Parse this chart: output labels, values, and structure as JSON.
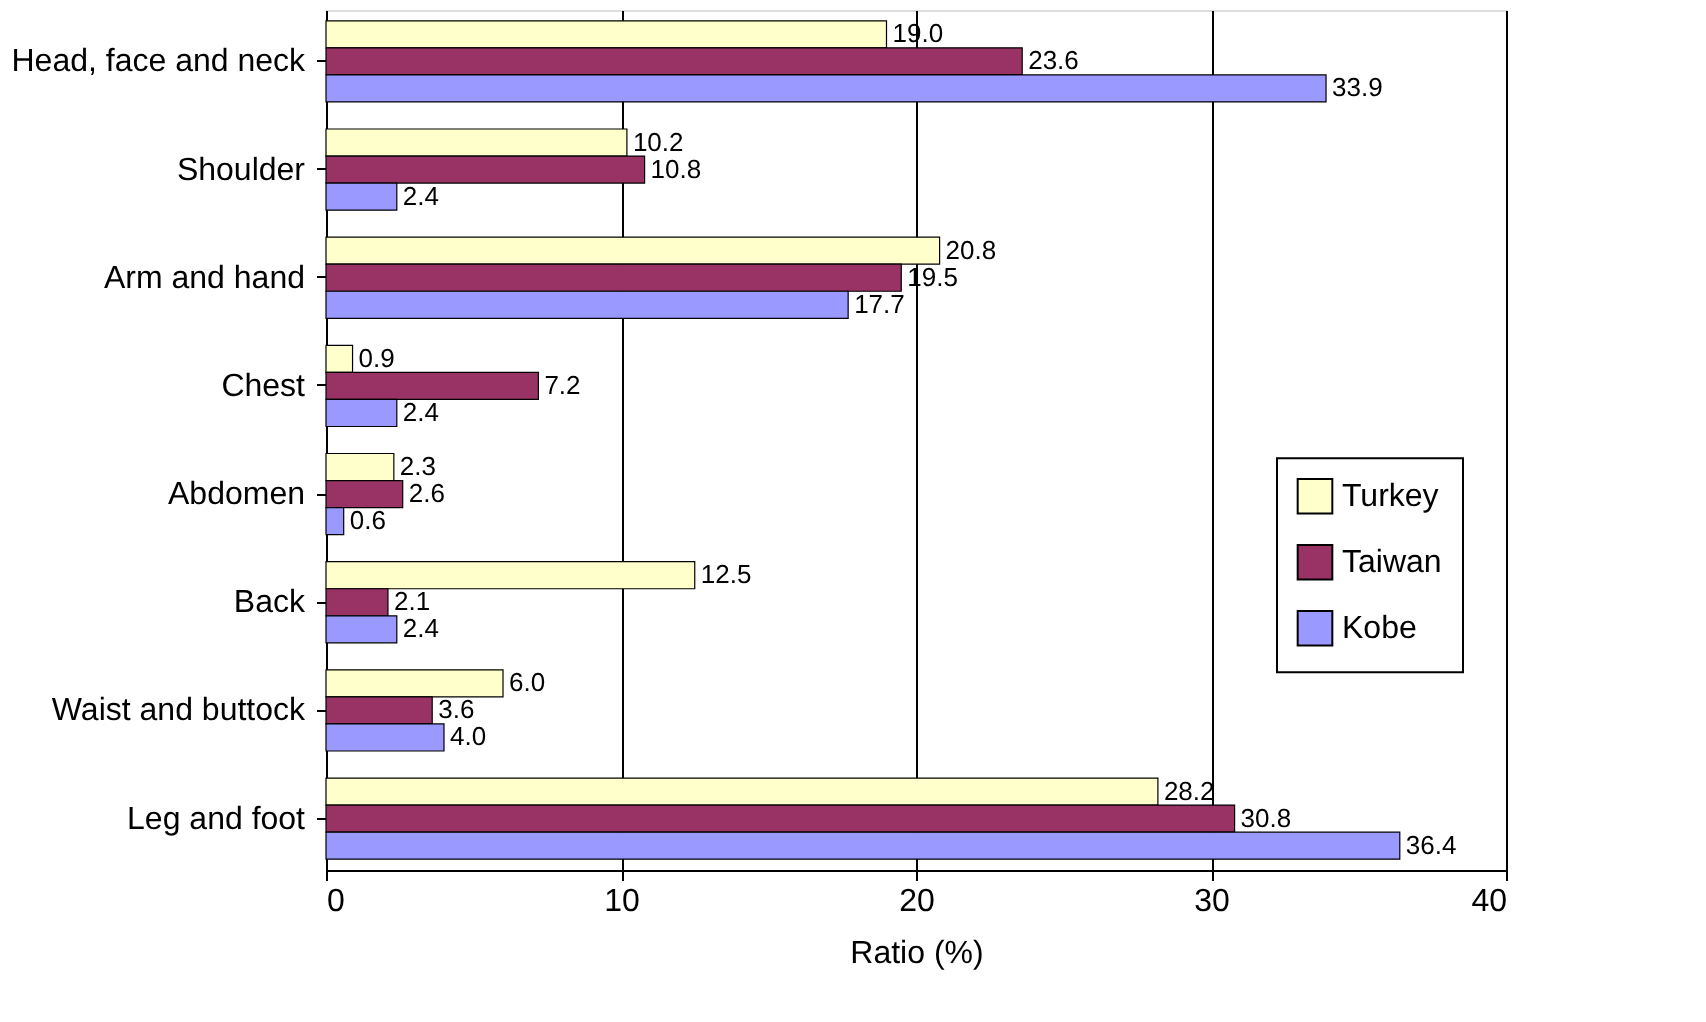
{
  "chart_data": {
    "type": "bar",
    "orientation": "horizontal",
    "xlabel": "Ratio (%)",
    "categories": [
      "Head, face and neck",
      "Shoulder",
      "Arm and hand",
      "Chest",
      "Abdomen",
      "Back",
      "Waist and buttock",
      "Leg and foot"
    ],
    "series": [
      {
        "name": "Turkey",
        "color": "#ffffcc",
        "values": [
          19.0,
          10.2,
          20.8,
          0.9,
          2.3,
          12.5,
          6.0,
          28.2
        ],
        "value_labels": [
          "19.0",
          "10.2",
          "20.8",
          "0.9",
          "2.3",
          "12.5",
          "6.0",
          "28.2"
        ]
      },
      {
        "name": "Taiwan",
        "color": "#993366",
        "values": [
          23.6,
          10.8,
          19.5,
          7.2,
          2.6,
          2.1,
          3.6,
          30.8
        ],
        "value_labels": [
          "23.6",
          "10.8",
          "19.5",
          "7.2",
          "2.6",
          "2.1",
          "3.6",
          "30.8"
        ]
      },
      {
        "name": "Kobe",
        "color": "#9999ff",
        "values": [
          33.9,
          2.4,
          17.7,
          2.4,
          0.6,
          2.4,
          4.0,
          36.4
        ],
        "value_labels": [
          "33.9",
          "2.4",
          "17.7",
          "2.4",
          "0.6",
          "2.4",
          "4.0",
          "36.4"
        ]
      }
    ],
    "xlim": [
      0,
      40
    ],
    "xticks": [
      0,
      10,
      20,
      30,
      40
    ],
    "grid": "x",
    "legend": "right"
  }
}
